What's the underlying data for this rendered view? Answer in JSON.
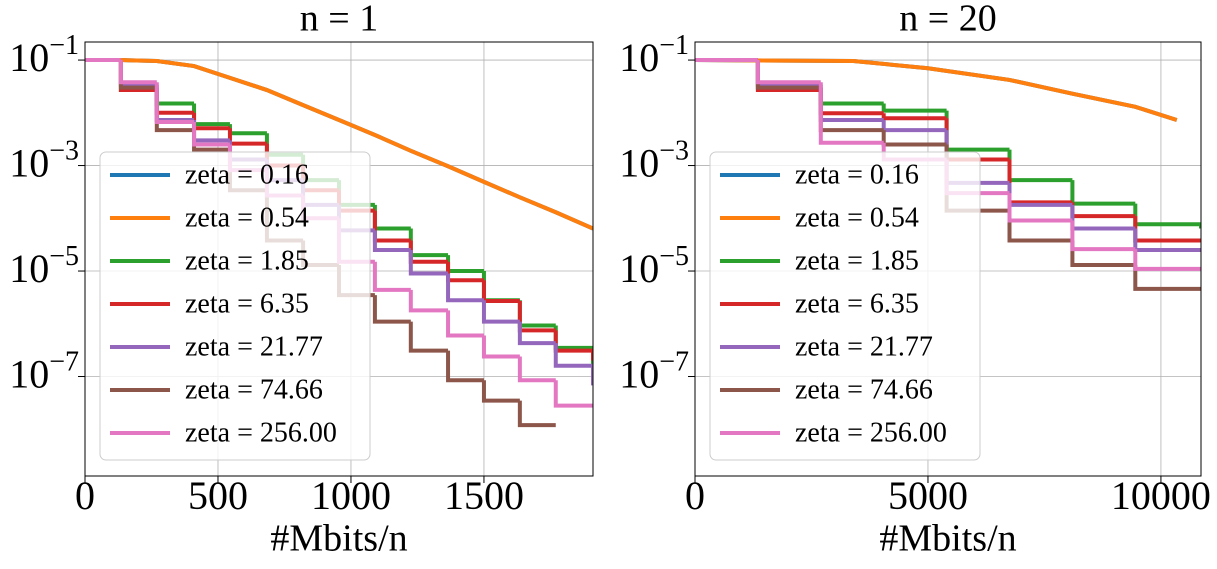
{
  "chart_data": [
    {
      "type": "line",
      "title": "n = 1",
      "xlabel": "#Mbits/n",
      "yscale": "log",
      "grid": true,
      "legend": "lower left",
      "drawstyle": "steps-post",
      "x": [
        0,
        135,
        270,
        410,
        545,
        684,
        820,
        955,
        1090,
        1225,
        1365,
        1500,
        1635,
        1770,
        1910
      ],
      "xlim": [
        0,
        1910
      ],
      "xticks": [
        0,
        500,
        1000,
        1500
      ],
      "ylim": [
        1.3e-09,
        0.22
      ],
      "yticks": [
        {
          "value": 0.1,
          "label": "10−1"
        },
        {
          "value": 0.001,
          "label": "10−3"
        },
        {
          "value": 1e-05,
          "label": "10−5"
        },
        {
          "value": 1e-07,
          "label": "10−7"
        }
      ],
      "series": [
        {
          "name": "zeta = 0.16",
          "color": "#1f77b4",
          "x": [
            0,
            135,
            270,
            410,
            545,
            684,
            820,
            955,
            1090,
            1225,
            1365,
            1500,
            1635,
            1770,
            1910
          ],
          "values": [
            0.1,
            0.1,
            0.096,
            0.077,
            0.046,
            0.027,
            0.014,
            0.0073,
            0.0038,
            0.0019,
            0.00097,
            0.00049,
            0.00025,
            0.00013,
            6.4e-05
          ]
        },
        {
          "name": "zeta = 0.54",
          "color": "#ff7f0e",
          "x": [
            0,
            135,
            270,
            410,
            545,
            684,
            820,
            955,
            1090,
            1225,
            1365,
            1500,
            1635,
            1770,
            1910
          ],
          "values": [
            0.1,
            0.1,
            0.096,
            0.077,
            0.046,
            0.027,
            0.014,
            0.0073,
            0.0038,
            0.0019,
            0.00097,
            0.00049,
            0.00025,
            0.00013,
            6.4e-05
          ]
        },
        {
          "name": "zeta = 1.85",
          "color": "#2ca02c",
          "values": [
            0.1,
            0.027,
            0.015,
            0.0061,
            0.0041,
            0.0016,
            0.00053,
            0.00018,
            6.4e-05,
            2e-05,
            1e-05,
            2.8e-06,
            9.3e-07,
            3.5e-07,
            1.2e-07
          ]
        },
        {
          "name": "zeta = 6.35",
          "color": "#d62728",
          "values": [
            0.1,
            0.027,
            0.01,
            0.0051,
            0.0026,
            0.001,
            0.00034,
            0.00014,
            3.8e-05,
            1.5e-05,
            6.7e-06,
            2.7e-06,
            7.5e-07,
            3.1e-07,
            2e-07
          ]
        },
        {
          "name": "zeta = 21.77",
          "color": "#9467bd",
          "values": [
            0.1,
            0.034,
            0.0073,
            0.003,
            0.0013,
            0.00053,
            0.00018,
            5.9e-05,
            2.5e-05,
            9e-06,
            2.8e-06,
            1.1e-06,
            4.3e-07,
            1.6e-07,
            6.8e-08
          ]
        },
        {
          "name": "zeta = 74.66",
          "color": "#8c564b",
          "values": [
            0.1,
            0.03,
            0.0047,
            0.002,
            0.00034,
            3.8e-05,
            1.3e-05,
            3.5e-06,
            1.1e-06,
            3.1e-07,
            8.5e-08,
            3.5e-08,
            1.2e-08,
            null,
            null
          ]
        },
        {
          "name": "zeta = 256.00",
          "color": "#e377c2",
          "values": [
            0.1,
            0.038,
            0.0067,
            0.0025,
            0.00082,
            0.00027,
            0.0001,
            1.5e-05,
            4.4e-06,
            1.8e-06,
            6e-07,
            2.4e-07,
            8.5e-08,
            2.8e-08,
            2.8e-08
          ]
        }
      ]
    },
    {
      "type": "line",
      "title": "n = 20",
      "xlabel": "#Mbits/n",
      "yscale": "log",
      "grid": true,
      "legend": "lower left",
      "drawstyle": "steps-post",
      "x": [
        0,
        1350,
        2700,
        4050,
        5400,
        6750,
        8100,
        9450,
        10860
      ],
      "xlim": [
        0,
        10860
      ],
      "xticks": [
        0,
        5000,
        10000
      ],
      "ylim": [
        1.3e-09,
        0.22
      ],
      "yticks": [
        {
          "value": 0.1,
          "label": "10−1"
        },
        {
          "value": 0.001,
          "label": "10−3"
        },
        {
          "value": 1e-05,
          "label": "10−5"
        },
        {
          "value": 1e-07,
          "label": "10−7"
        }
      ],
      "series": [
        {
          "name": "zeta = 0.16",
          "color": "#1f77b4",
          "x": [
            0,
            3400,
            5000,
            6750,
            8100,
            9450,
            10340
          ],
          "values": [
            0.1,
            0.096,
            0.07,
            0.042,
            0.023,
            0.013,
            0.0073
          ]
        },
        {
          "name": "zeta = 0.54",
          "color": "#ff7f0e",
          "x": [
            0,
            3400,
            5000,
            6750,
            8100,
            9450,
            10340
          ],
          "values": [
            0.1,
            0.096,
            0.07,
            0.042,
            0.023,
            0.013,
            0.0073
          ]
        },
        {
          "name": "zeta = 1.85",
          "color": "#2ca02c",
          "values": [
            0.1,
            0.03,
            0.015,
            0.011,
            0.002,
            0.00053,
            0.00019,
            7.7e-05,
            6.4e-05
          ]
        },
        {
          "name": "zeta = 6.35",
          "color": "#d62728",
          "values": [
            0.1,
            0.027,
            0.0098,
            0.0079,
            0.0013,
            0.0002,
            0.00011,
            3.8e-05,
            3.8e-05
          ]
        },
        {
          "name": "zeta = 21.77",
          "color": "#9467bd",
          "values": [
            0.1,
            0.034,
            0.0073,
            0.0047,
            0.00047,
            0.00018,
            6.4e-05,
            2.5e-05,
            2.5e-05
          ]
        },
        {
          "name": "zeta = 74.66",
          "color": "#8c564b",
          "values": [
            0.1,
            0.03,
            0.0047,
            0.0025,
            0.00014,
            3.8e-05,
            1.3e-05,
            4.6e-06,
            4.6e-06
          ]
        },
        {
          "name": "zeta = 256.00",
          "color": "#e377c2",
          "values": [
            0.1,
            0.038,
            0.0027,
            0.0013,
            0.0003,
            9.1e-05,
            2.6e-05,
            1.1e-05,
            1.1e-05
          ]
        }
      ]
    }
  ]
}
